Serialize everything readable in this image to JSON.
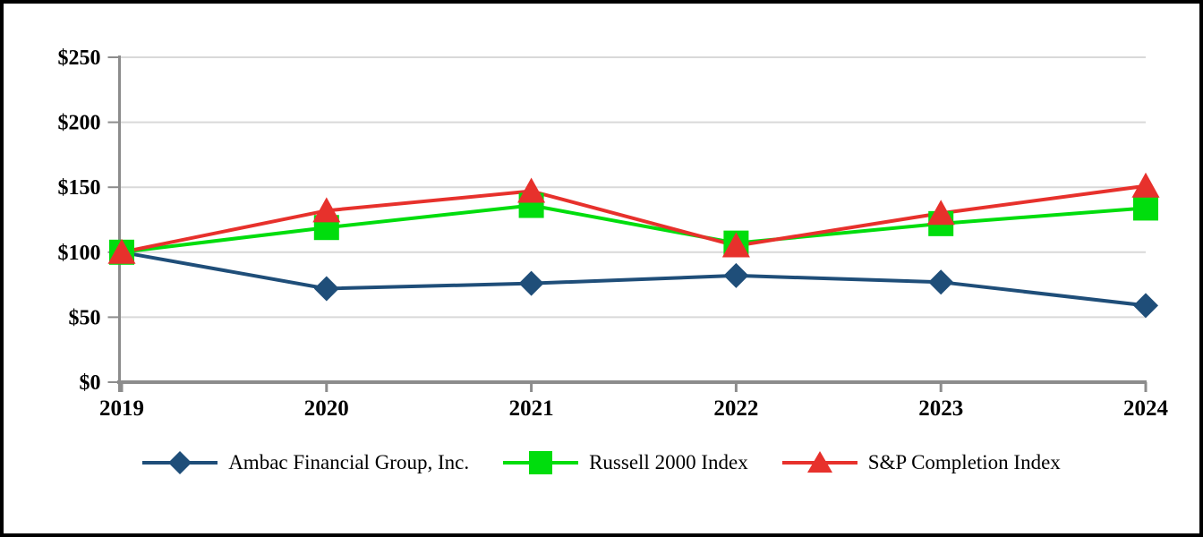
{
  "chart_data": {
    "type": "line",
    "title": "",
    "xlabel": "",
    "ylabel": "",
    "categories": [
      "2019",
      "2020",
      "2021",
      "2022",
      "2023",
      "2024"
    ],
    "ylim": [
      0,
      250
    ],
    "grid": true,
    "legend_position": "bottom",
    "y_ticks": [
      {
        "value": 0,
        "label": "$0"
      },
      {
        "value": 50,
        "label": "$50"
      },
      {
        "value": 100,
        "label": "$100"
      },
      {
        "value": 150,
        "label": "$150"
      },
      {
        "value": 200,
        "label": "$200"
      },
      {
        "value": 250,
        "label": "$250"
      }
    ],
    "series": [
      {
        "name": "Ambac Financial Group, Inc.",
        "marker": "diamond",
        "color": "#1F4E79",
        "values": [
          100,
          72,
          76,
          82,
          77,
          59
        ]
      },
      {
        "name": "Russell 2000 Index",
        "marker": "square",
        "color": "#00DD0D",
        "values": [
          100,
          119,
          136,
          107,
          122,
          134
        ]
      },
      {
        "name": "S&P Completion Index",
        "marker": "triangle",
        "color": "#E7312C",
        "values": [
          100,
          132,
          147,
          105,
          130,
          151
        ]
      }
    ]
  },
  "colors": {
    "background": "#FFFFFF",
    "frame_border": "#000000",
    "gridline": "#D9D9D9",
    "axis": "#8C8C8C",
    "label_text": "#000000"
  }
}
